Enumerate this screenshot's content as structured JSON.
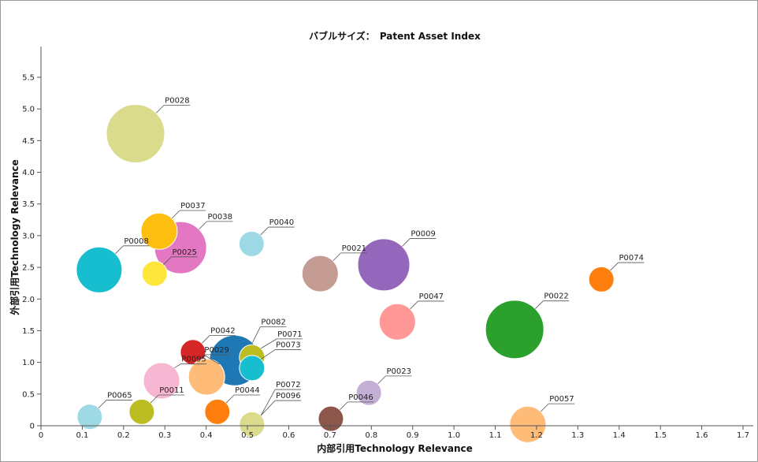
{
  "chart_data": {
    "type": "scatter",
    "title": "バブルサイズ：　Patent Asset Index",
    "xlabel": "内部引用Technology Relevance",
    "ylabel": "外部引用Technology Relevance",
    "xlim": [
      0,
      1.72
    ],
    "ylim": [
      0,
      6
    ],
    "xticks": [
      "0",
      "0.1",
      "0.2",
      "0.3",
      "0.4",
      "0.5",
      "0.6",
      "0.7",
      "0.8",
      "0.9",
      "1.0",
      "1.1",
      "1.2",
      "1.3",
      "1.4",
      "1.5",
      "1.6",
      "1.7"
    ],
    "yticks": [
      "0",
      "0.5",
      "1.0",
      "1.5",
      "2.0",
      "2.5",
      "3.0",
      "3.5",
      "4.0",
      "4.5",
      "5.0",
      "5.5"
    ],
    "grid": false,
    "size_note_relative": true,
    "points": [
      {
        "id": "P0028",
        "x": 0.229,
        "y": 4.61,
        "size": 37,
        "color": "#dbdb8d"
      },
      {
        "id": "P0008",
        "x": 0.141,
        "y": 2.46,
        "size": 29,
        "color": "#17becf"
      },
      {
        "id": "P0038",
        "x": 0.338,
        "y": 2.81,
        "size": 33,
        "color": "#e377c2"
      },
      {
        "id": "P0037",
        "x": 0.286,
        "y": 3.07,
        "size": 23,
        "color": "#ffbf10"
      },
      {
        "id": "P0025",
        "x": 0.275,
        "y": 2.4,
        "size": 16,
        "color": "#ffe63a"
      },
      {
        "id": "P0040",
        "x": 0.51,
        "y": 2.87,
        "size": 16,
        "color": "#9edae5"
      },
      {
        "id": "P0021",
        "x": 0.676,
        "y": 2.4,
        "size": 23,
        "color": "#c49c94"
      },
      {
        "id": "P0009",
        "x": 0.83,
        "y": 2.54,
        "size": 33,
        "color": "#9467bd"
      },
      {
        "id": "P0074",
        "x": 1.357,
        "y": 2.31,
        "size": 16,
        "color": "#ff7f0e"
      },
      {
        "id": "P0047",
        "x": 0.863,
        "y": 1.64,
        "size": 23,
        "color": "#ff9896"
      },
      {
        "id": "P0022",
        "x": 1.147,
        "y": 1.52,
        "size": 37,
        "color": "#2ca02c"
      },
      {
        "id": "P0042",
        "x": 0.368,
        "y": 1.16,
        "size": 16,
        "color": "#d62728"
      },
      {
        "id": "P0082",
        "x": 0.469,
        "y": 1.03,
        "size": 32,
        "color": "#1f77b4"
      },
      {
        "id": "P0071",
        "x": 0.511,
        "y": 1.08,
        "size": 16,
        "color": "#bcbd22"
      },
      {
        "id": "P0073",
        "x": 0.511,
        "y": 0.91,
        "size": 16,
        "color": "#17becf"
      },
      {
        "id": "P0095",
        "x": 0.292,
        "y": 0.71,
        "size": 23,
        "color": "#f7b6d2"
      },
      {
        "id": "P0029",
        "x": 0.401,
        "y": 0.77,
        "size": 23,
        "color": "#ffbb78"
      },
      {
        "id": "P0065",
        "x": 0.118,
        "y": 0.14,
        "size": 16,
        "color": "#9edae5"
      },
      {
        "id": "P0011",
        "x": 0.244,
        "y": 0.22,
        "size": 16,
        "color": "#bcbd22"
      },
      {
        "id": "P0044",
        "x": 0.427,
        "y": 0.22,
        "size": 16,
        "color": "#ff7f0e"
      },
      {
        "id": "P0072",
        "x": 0.511,
        "y": 0.02,
        "size": 16,
        "color": "#dbdb8d"
      },
      {
        "id": "P0096",
        "x": 0.511,
        "y": 0.02,
        "size": 16,
        "color": "#dbdb8d"
      },
      {
        "id": "P0046",
        "x": 0.702,
        "y": 0.11,
        "size": 16,
        "color": "#8c564b"
      },
      {
        "id": "P0023",
        "x": 0.794,
        "y": 0.52,
        "size": 16,
        "color": "#c5b0d5"
      },
      {
        "id": "P0057",
        "x": 1.179,
        "y": 0.02,
        "size": 23,
        "color": "#ffbb78"
      }
    ],
    "label_offsets": {
      "P0082": [
        10,
        -20
      ],
      "P0071": [
        20,
        -12
      ],
      "P0073": [
        18,
        -12
      ],
      "P0072": [
        18,
        -33
      ],
      "P0096": [
        18,
        -19
      ],
      "P0029": [
        -20,
        -12
      ],
      "P0095": [
        8,
        -5
      ]
    }
  }
}
